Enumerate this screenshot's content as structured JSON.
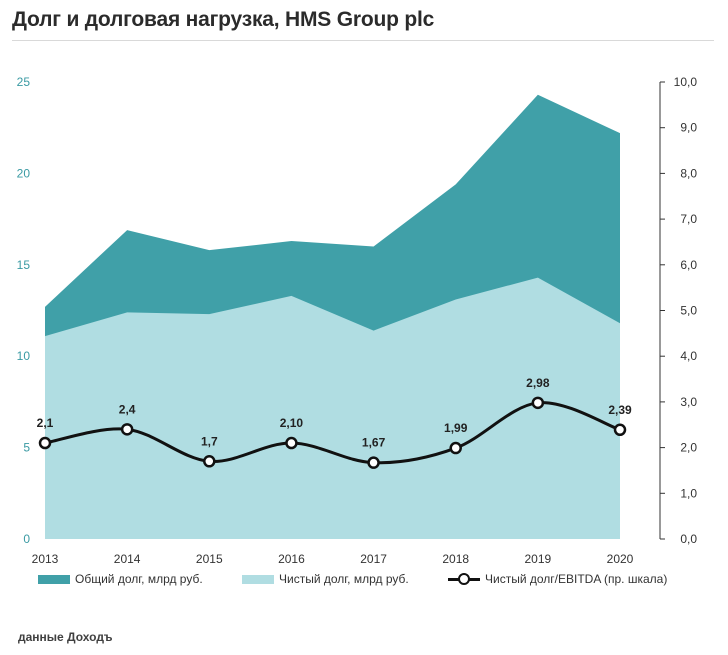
{
  "title": "Долг и долговая нагрузка, HMS Group plc",
  "source": "данные Доходъ",
  "colors": {
    "total_debt": "#40a0a8",
    "net_debt": "#b0dde2",
    "ratio_line": "#111111",
    "left_axis_text": "#3a9aa3",
    "right_axis_text": "#333333"
  },
  "chart_data": {
    "type": "area",
    "categories": [
      "2013",
      "2014",
      "2015",
      "2016",
      "2017",
      "2018",
      "2019",
      "2020"
    ],
    "series": [
      {
        "name": "Общий долг, млрд руб.",
        "type": "area",
        "axis": "left",
        "values": [
          12.7,
          16.9,
          15.8,
          16.3,
          16.0,
          19.4,
          24.3,
          22.2
        ]
      },
      {
        "name": "Чистый долг, млрд руб.",
        "type": "area",
        "axis": "left",
        "values": [
          11.1,
          12.4,
          12.3,
          13.3,
          11.4,
          13.1,
          14.3,
          11.8
        ]
      },
      {
        "name": "Чистый долг/EBITDA (пр. шкала)",
        "type": "line",
        "axis": "right",
        "values": [
          2.1,
          2.4,
          1.7,
          2.1,
          1.67,
          1.99,
          2.98,
          2.39
        ],
        "labels": [
          "2,1",
          "2,4",
          "1,7",
          "2,10",
          "1,67",
          "1,99",
          "2,98",
          "2,39"
        ]
      }
    ],
    "y_left": {
      "min": 0,
      "max": 25,
      "ticks": [
        "0",
        "5",
        "10",
        "15",
        "20",
        "25"
      ]
    },
    "y_right": {
      "min": 0,
      "max": 10,
      "ticks": [
        "0,0",
        "1,0",
        "2,0",
        "3,0",
        "4,0",
        "5,0",
        "6,0",
        "7,0",
        "8,0",
        "9,0",
        "10,0"
      ]
    },
    "legend_position": "bottom",
    "grid": false
  }
}
